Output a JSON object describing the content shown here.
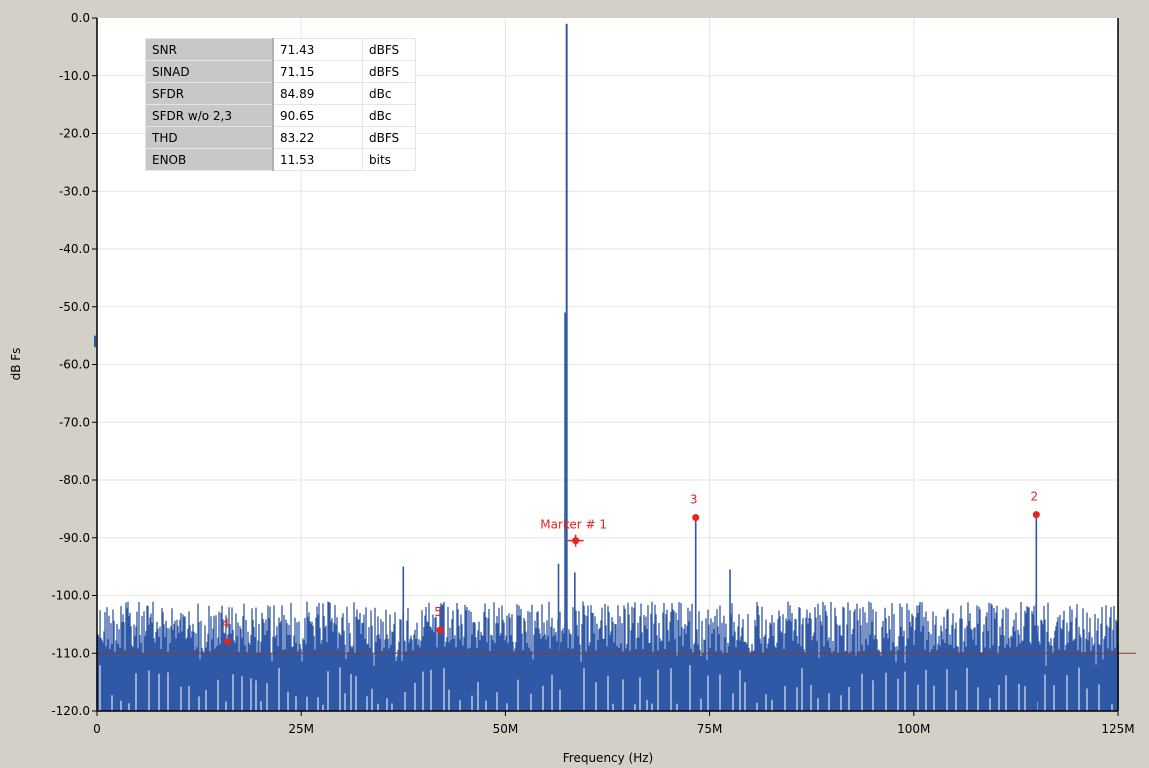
{
  "chart_data": {
    "type": "line",
    "xlabel": "Frequency (Hz)",
    "ylabel": "dB Fs",
    "xlim": [
      0,
      125
    ],
    "ylim": [
      -120,
      0
    ],
    "x_ticks": [
      "0",
      "25M",
      "50M",
      "75M",
      "100M",
      "125M"
    ],
    "y_ticks": [
      "0.0",
      "-10.0",
      "-20.0",
      "-30.0",
      "-40.0",
      "-50.0",
      "-60.0",
      "-70.0",
      "-80.0",
      "-90.0",
      "-100.0",
      "-110.0",
      "-120.0"
    ],
    "grid": true,
    "noise_floor_db": -110,
    "fundamental": {
      "x": 57.5,
      "y": -1
    },
    "spurs": [
      {
        "x": 57.3,
        "y": -51
      },
      {
        "x": 37.5,
        "y": -95
      },
      {
        "x": 56.5,
        "y": -94.5
      },
      {
        "x": 58.5,
        "y": -96
      },
      {
        "x": 73.3,
        "y": -86.5
      },
      {
        "x": 77.5,
        "y": -95.5
      },
      {
        "x": 115.0,
        "y": -86
      }
    ],
    "markers": [
      {
        "label": "2",
        "x": 115.0,
        "y": -86
      },
      {
        "label": "3",
        "x": 73.3,
        "y": -86.5
      },
      {
        "label": "4",
        "x": 16.0,
        "y": -108
      },
      {
        "label": "5",
        "x": 42.0,
        "y": -106
      },
      {
        "label": "Marker # 1",
        "x": 58.6,
        "y": -90.5
      }
    ],
    "stats_table": [
      {
        "name": "SNR",
        "value": "71.43",
        "unit": "dBFS"
      },
      {
        "name": "SINAD",
        "value": "71.15",
        "unit": "dBFS"
      },
      {
        "name": "SFDR",
        "value": "84.89",
        "unit": "dBc"
      },
      {
        "name": "SFDR w/o 2,3",
        "value": "90.65",
        "unit": "dBc"
      },
      {
        "name": "THD",
        "value": "83.22",
        "unit": "dBFS"
      },
      {
        "name": "ENOB",
        "value": "11.53",
        "unit": "bits"
      }
    ],
    "colors": {
      "spectrum": "#2f58a6",
      "marker": "#e8231e",
      "reference_line": "#8b3a2a",
      "frame": "#d4d0c8"
    }
  }
}
